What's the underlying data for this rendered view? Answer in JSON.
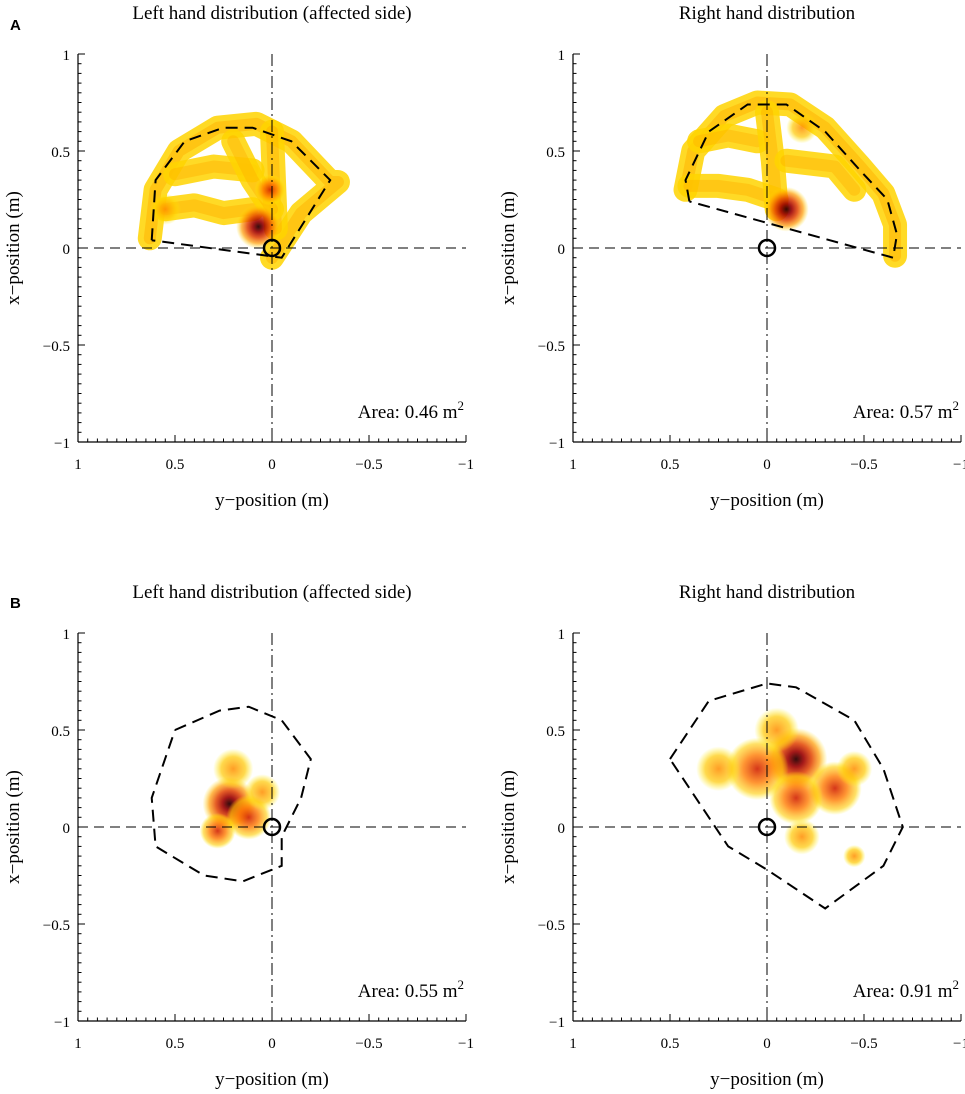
{
  "figure": {
    "panel_letters": [
      "A",
      "B"
    ]
  },
  "chart_data": [
    {
      "type": "heatmap",
      "panel": "A",
      "title": "Left hand distribution (affected side)",
      "xlabel": "y−position (m)",
      "ylabel": "x−position (m)",
      "xlim": [
        1,
        -1
      ],
      "ylim": [
        -1,
        1
      ],
      "xticks": [
        "1",
        "0.5",
        "0",
        "−0.5",
        "−1"
      ],
      "yticks": [
        "1",
        "0.5",
        "0",
        "−0.5",
        "−1"
      ],
      "area_label": "Area: 0.46 m",
      "area_unit_sup": "2",
      "area_value_m2": 0.46,
      "origin_marker": [
        0,
        0
      ],
      "hull": [
        [
          0.62,
          0.04
        ],
        [
          0.6,
          0.35
        ],
        [
          0.45,
          0.55
        ],
        [
          0.25,
          0.62
        ],
        [
          0.1,
          0.62
        ],
        [
          -0.1,
          0.55
        ],
        [
          -0.3,
          0.35
        ],
        [
          -0.05,
          -0.05
        ],
        [
          0.62,
          0.04
        ]
      ],
      "density": [
        {
          "path": [
            [
              0.63,
              0.05
            ],
            [
              0.6,
              0.3
            ],
            [
              0.48,
              0.5
            ],
            [
              0.28,
              0.62
            ],
            [
              0.08,
              0.64
            ],
            [
              -0.1,
              0.55
            ],
            [
              -0.3,
              0.34
            ],
            [
              -0.34,
              0.34
            ],
            [
              -0.15,
              0.18
            ],
            [
              0.0,
              -0.05
            ]
          ],
          "weight": 0.55
        },
        {
          "path": [
            [
              0.55,
              0.2
            ],
            [
              0.4,
              0.22
            ],
            [
              0.25,
              0.18
            ],
            [
              0.1,
              0.2
            ]
          ],
          "weight": 0.5
        },
        {
          "path": [
            [
              0.5,
              0.38
            ],
            [
              0.3,
              0.42
            ],
            [
              0.1,
              0.4
            ]
          ],
          "weight": 0.45
        },
        {
          "path": [
            [
              0.0,
              0.6
            ],
            [
              -0.01,
              0.35
            ],
            [
              -0.02,
              0.1
            ]
          ],
          "weight": 0.5
        },
        {
          "path": [
            [
              0.2,
              0.55
            ],
            [
              0.1,
              0.35
            ],
            [
              0.0,
              0.2
            ]
          ],
          "weight": 0.4
        },
        {
          "point": [
            0.07,
            0.11
          ],
          "weight": 1.0,
          "spread": 0.1
        },
        {
          "point": [
            0.55,
            0.2
          ],
          "weight": 0.55,
          "spread": 0.07
        },
        {
          "point": [
            0.01,
            0.3
          ],
          "weight": 0.6,
          "spread": 0.07
        }
      ]
    },
    {
      "type": "heatmap",
      "panel": "A",
      "title": "Right hand distribution",
      "xlabel": "y−position (m)",
      "ylabel": "x−position (m)",
      "xlim": [
        1,
        -1
      ],
      "ylim": [
        -1,
        1
      ],
      "xticks": [
        "1",
        "0.5",
        "0",
        "−0.5",
        "−1"
      ],
      "yticks": [
        "1",
        "0.5",
        "0",
        "−0.5",
        "−1"
      ],
      "area_label": "Area: 0.57 m",
      "area_unit_sup": "2",
      "area_value_m2": 0.57,
      "origin_marker": [
        0,
        0
      ],
      "hull": [
        [
          0.4,
          0.24
        ],
        [
          0.42,
          0.35
        ],
        [
          0.3,
          0.6
        ],
        [
          0.1,
          0.74
        ],
        [
          -0.1,
          0.74
        ],
        [
          -0.3,
          0.6
        ],
        [
          -0.48,
          0.4
        ],
        [
          -0.62,
          0.25
        ],
        [
          -0.67,
          0.07
        ],
        [
          -0.65,
          -0.05
        ],
        [
          0.4,
          0.24
        ]
      ],
      "density": [
        {
          "path": [
            [
              0.42,
              0.3
            ],
            [
              0.38,
              0.5
            ],
            [
              0.22,
              0.68
            ],
            [
              0.05,
              0.75
            ],
            [
              -0.12,
              0.74
            ],
            [
              -0.3,
              0.62
            ],
            [
              -0.48,
              0.42
            ],
            [
              -0.6,
              0.28
            ],
            [
              -0.66,
              0.12
            ],
            [
              -0.66,
              -0.04
            ]
          ],
          "weight": 0.55
        },
        {
          "path": [
            [
              0.4,
              0.32
            ],
            [
              0.25,
              0.32
            ],
            [
              0.1,
              0.3
            ],
            [
              -0.05,
              0.25
            ]
          ],
          "weight": 0.45
        },
        {
          "path": [
            [
              0.35,
              0.55
            ],
            [
              0.2,
              0.58
            ],
            [
              0.05,
              0.55
            ]
          ],
          "weight": 0.4
        },
        {
          "path": [
            [
              0.0,
              0.7
            ],
            [
              -0.03,
              0.45
            ],
            [
              -0.05,
              0.2
            ]
          ],
          "weight": 0.45
        },
        {
          "path": [
            [
              -0.1,
              0.45
            ],
            [
              -0.35,
              0.42
            ],
            [
              -0.45,
              0.3
            ]
          ],
          "weight": 0.4
        },
        {
          "point": [
            -0.1,
            0.2
          ],
          "weight": 1.0,
          "spread": 0.1
        },
        {
          "point": [
            -0.18,
            0.62
          ],
          "weight": 0.5,
          "spread": 0.07
        }
      ]
    },
    {
      "type": "heatmap",
      "panel": "B",
      "title": "Left hand distribution (affected side)",
      "xlabel": "y−position (m)",
      "ylabel": "x−position (m)",
      "xlim": [
        1,
        -1
      ],
      "ylim": [
        -1,
        1
      ],
      "xticks": [
        "1",
        "0.5",
        "0",
        "−0.5",
        "−1"
      ],
      "yticks": [
        "1",
        "0.5",
        "0",
        "−0.5",
        "−1"
      ],
      "area_label": "Area: 0.55 m",
      "area_unit_sup": "2",
      "area_value_m2": 0.55,
      "origin_marker": [
        0,
        0
      ],
      "hull": [
        [
          0.5,
          0.5
        ],
        [
          0.27,
          0.6
        ],
        [
          0.12,
          0.62
        ],
        [
          -0.05,
          0.55
        ],
        [
          -0.2,
          0.35
        ],
        [
          -0.15,
          0.15
        ],
        [
          -0.05,
          -0.05
        ],
        [
          -0.05,
          -0.2
        ],
        [
          0.15,
          -0.28
        ],
        [
          0.35,
          -0.25
        ],
        [
          0.6,
          -0.1
        ],
        [
          0.62,
          0.15
        ],
        [
          0.5,
          0.5
        ]
      ],
      "density": [
        {
          "point": [
            0.22,
            0.12
          ],
          "weight": 1.0,
          "spread": 0.12
        },
        {
          "point": [
            0.12,
            0.05
          ],
          "weight": 0.75,
          "spread": 0.1
        },
        {
          "point": [
            0.28,
            -0.02
          ],
          "weight": 0.65,
          "spread": 0.08
        },
        {
          "point": [
            0.2,
            0.3
          ],
          "weight": 0.5,
          "spread": 0.09
        },
        {
          "point": [
            0.05,
            0.18
          ],
          "weight": 0.5,
          "spread": 0.08
        }
      ]
    },
    {
      "type": "heatmap",
      "panel": "B",
      "title": "Right hand distribution",
      "xlabel": "y−position (m)",
      "ylabel": "x−position (m)",
      "xlim": [
        1,
        -1
      ],
      "ylim": [
        -1,
        1
      ],
      "xticks": [
        "1",
        "0.5",
        "0",
        "−0.5",
        "−1"
      ],
      "yticks": [
        "1",
        "0.5",
        "0",
        "−0.5",
        "−1"
      ],
      "area_label": "Area: 0.91 m",
      "area_unit_sup": "2",
      "area_value_m2": 0.91,
      "origin_marker": [
        0,
        0
      ],
      "hull": [
        [
          0.5,
          0.35
        ],
        [
          0.3,
          0.65
        ],
        [
          0.0,
          0.74
        ],
        [
          -0.15,
          0.72
        ],
        [
          -0.45,
          0.55
        ],
        [
          -0.6,
          0.3
        ],
        [
          -0.7,
          0.0
        ],
        [
          -0.6,
          -0.2
        ],
        [
          -0.3,
          -0.42
        ],
        [
          0.0,
          -0.22
        ],
        [
          0.2,
          -0.1
        ],
        [
          0.5,
          0.35
        ]
      ],
      "density": [
        {
          "point": [
            -0.15,
            0.35
          ],
          "weight": 1.0,
          "spread": 0.14
        },
        {
          "point": [
            -0.35,
            0.2
          ],
          "weight": 0.85,
          "spread": 0.12
        },
        {
          "point": [
            0.05,
            0.3
          ],
          "weight": 0.8,
          "spread": 0.14
        },
        {
          "point": [
            0.25,
            0.3
          ],
          "weight": 0.55,
          "spread": 0.1
        },
        {
          "point": [
            -0.15,
            0.15
          ],
          "weight": 0.7,
          "spread": 0.12
        },
        {
          "point": [
            -0.05,
            0.5
          ],
          "weight": 0.55,
          "spread": 0.1
        },
        {
          "point": [
            -0.45,
            0.3
          ],
          "weight": 0.5,
          "spread": 0.08
        },
        {
          "point": [
            -0.18,
            -0.05
          ],
          "weight": 0.4,
          "spread": 0.08
        },
        {
          "point": [
            -0.45,
            -0.15
          ],
          "weight": 0.35,
          "spread": 0.05
        }
      ]
    }
  ]
}
